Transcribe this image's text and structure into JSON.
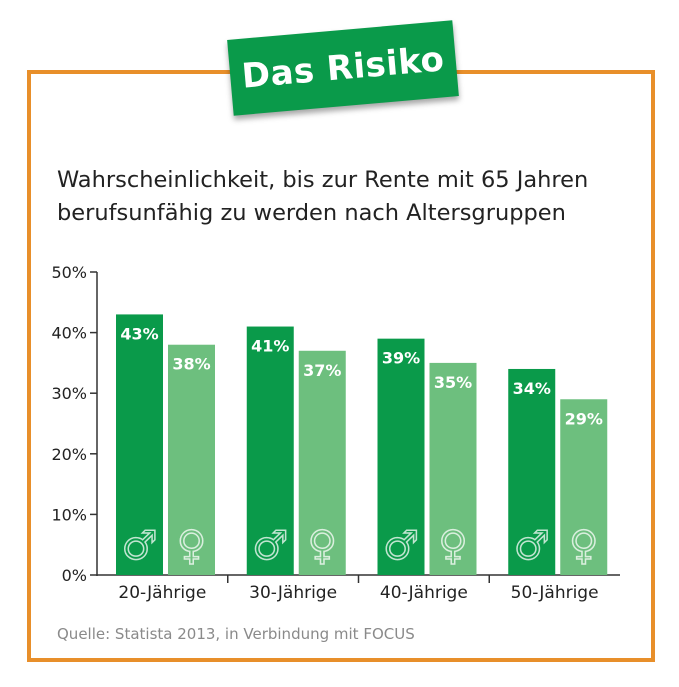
{
  "badge": {
    "title": "Das Risiko"
  },
  "subtitle_line1": "Wahrscheinlichkeit, bis zur Rente mit 65 Jahren",
  "subtitle_line2": "berufsunfähig zu werden nach Altersgruppen",
  "source": "Quelle: Statista 2013, in Verbindung mit FOCUS",
  "colors": {
    "male": "#0a9a4a",
    "female": "#6dbf7e",
    "frame": "#e88f2a"
  },
  "chart_data": {
    "type": "bar",
    "categories": [
      "20-Jährige",
      "30-Jährige",
      "40-Jährige",
      "50-Jährige"
    ],
    "series": [
      {
        "symbol": "♂",
        "values": [
          43,
          41,
          39,
          34
        ],
        "labels": [
          "43%",
          "41%",
          "39%",
          "34%"
        ]
      },
      {
        "symbol": "♀",
        "values": [
          38,
          37,
          35,
          29
        ],
        "labels": [
          "38%",
          "37%",
          "35%",
          "29%"
        ]
      }
    ],
    "title": "",
    "xlabel": "",
    "ylabel": "",
    "ylim": [
      0,
      50
    ],
    "yticks": [
      "0%",
      "10%",
      "20%",
      "30%",
      "40%",
      "50%"
    ],
    "grid": false,
    "legend": "none"
  }
}
